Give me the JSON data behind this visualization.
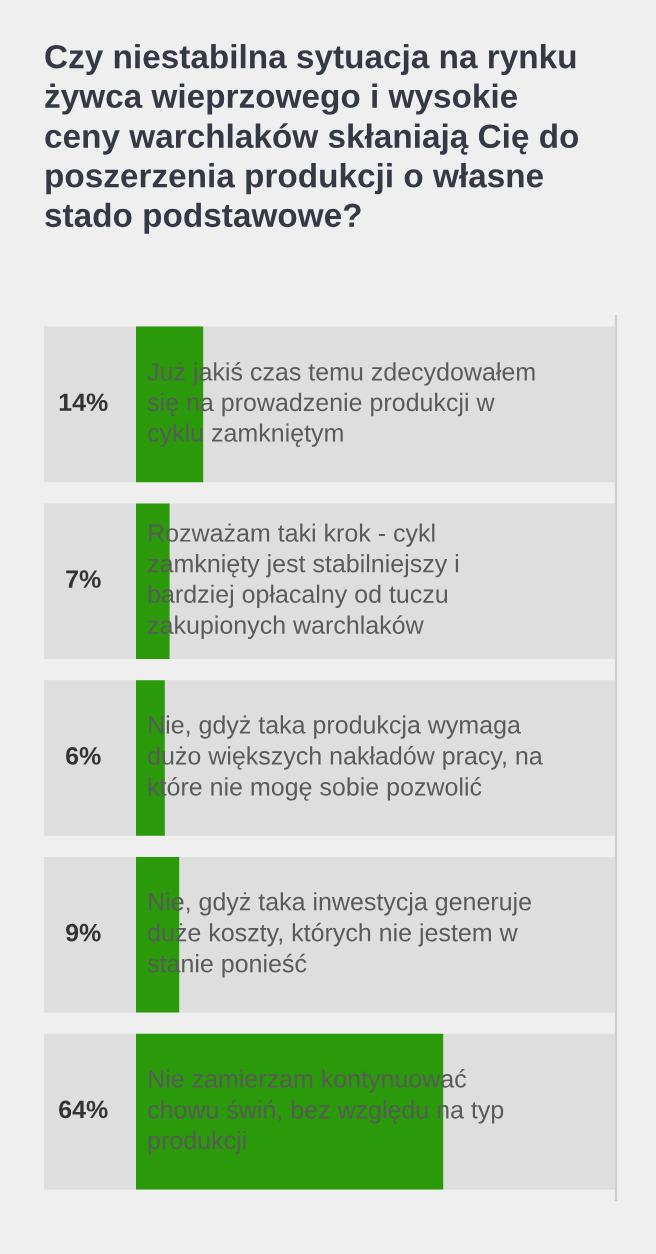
{
  "chart_data": {
    "type": "bar",
    "orientation": "horizontal",
    "title": "Czy niestabilna sytuacja na rynku\nżywca wieprzowego i wysokie\nceny warchlaków skłaniają Cię do\nposzerzenia produkcji o własne\nstado podstawowe?",
    "categories": [
      "Już jakiś czas temu zdecydowałem\nsię na prowadzenie produkcji w\ncyklu zamkniętym",
      "Rozważam taki krok - cykl\nzamknięty jest stabilniejszy i\nbardziej opłacalny od tuczu\nzakupionych warchlaków",
      "Nie, gdyż taka produkcja wymaga\ndużo większych nakładów pracy, na\nktóre nie mogę sobie pozwolić",
      "Nie, gdyż taka inwestycja generuje\nduże koszty, których nie jestem w\nstanie ponieść",
      "Nie zamierzam kontynuować\nchowu świń, bez względu na typ\nprodukcji"
    ],
    "values": [
      14,
      7,
      6,
      9,
      64
    ],
    "value_labels": [
      "14%",
      "7%",
      "6%",
      "9%",
      "64%"
    ],
    "color": "#2a9a0b",
    "xlim": [
      0,
      100
    ]
  }
}
